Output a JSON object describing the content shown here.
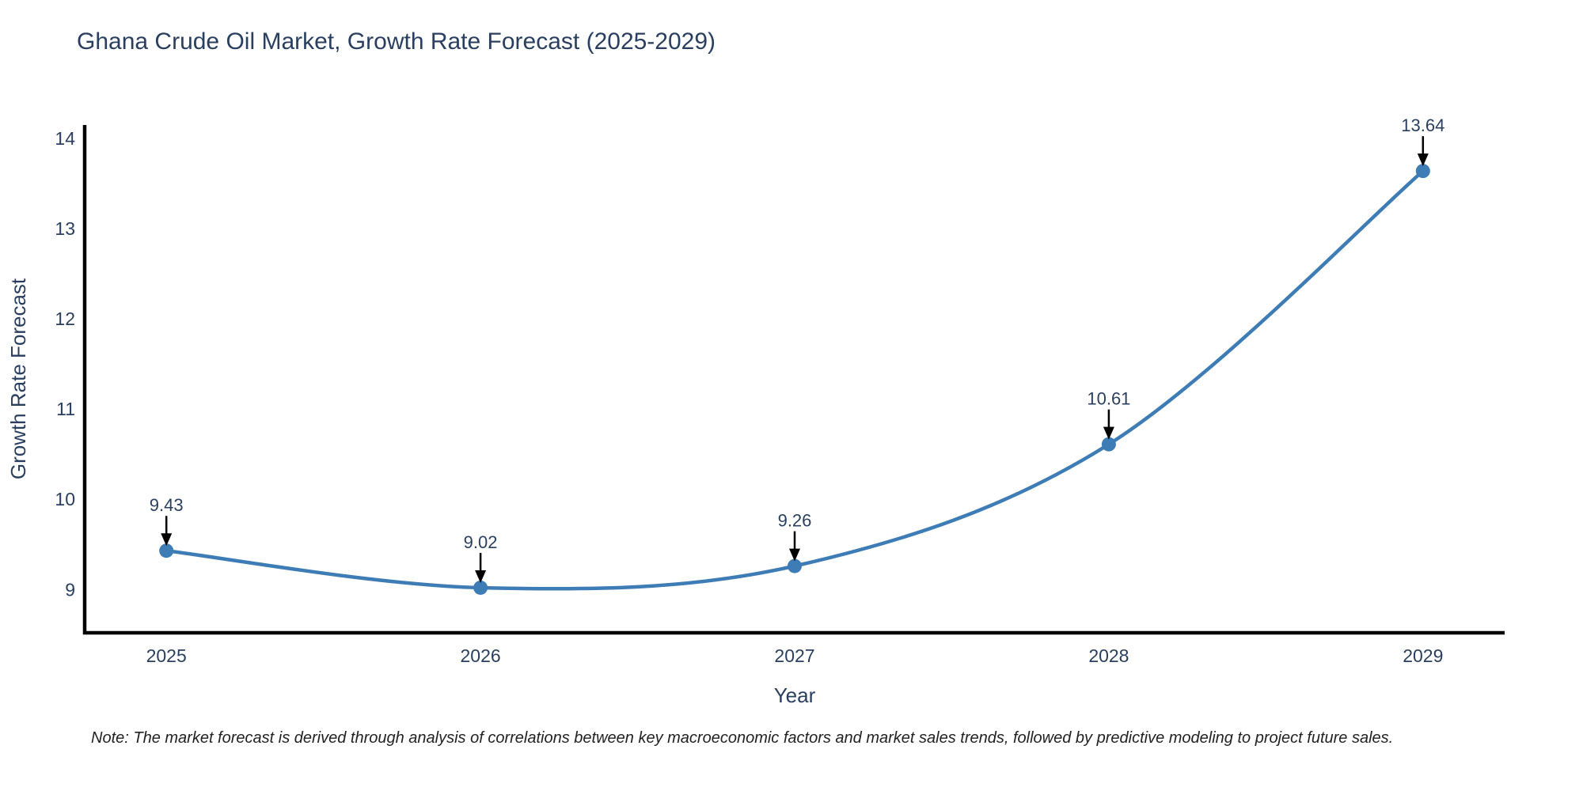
{
  "chart_data": {
    "type": "line",
    "title": "Ghana Crude Oil Market, Growth Rate Forecast (2025-2029)",
    "xlabel": "Year",
    "ylabel": "Growth Rate Forecast",
    "note": "Note: The market forecast is derived through analysis of correlations between key macroeconomic factors and market sales trends, followed by predictive modeling to project future sales.",
    "x": [
      2025,
      2026,
      2027,
      2028,
      2029
    ],
    "x_tick_labels": [
      "2025",
      "2026",
      "2027",
      "2028",
      "2029"
    ],
    "values": [
      9.43,
      9.02,
      9.26,
      10.61,
      13.64
    ],
    "point_labels": [
      "9.43",
      "9.02",
      "9.26",
      "10.61",
      "13.64"
    ],
    "y_ticks": [
      9,
      10,
      11,
      12,
      13,
      14
    ],
    "xlim": [
      2024.74,
      2029.26
    ],
    "ylim": [
      8.52,
      14.15
    ],
    "grid": false,
    "legend": "none",
    "line_shape": "spline",
    "colors": {
      "series": "#3e7cb6",
      "axis_line": "#000000",
      "tick_text": "#2a3f5f",
      "title_text": "#2a3f5f",
      "annotation_text": "#2a3f5f",
      "annotation_arrow": "#000000",
      "note_text": "#222222"
    }
  }
}
